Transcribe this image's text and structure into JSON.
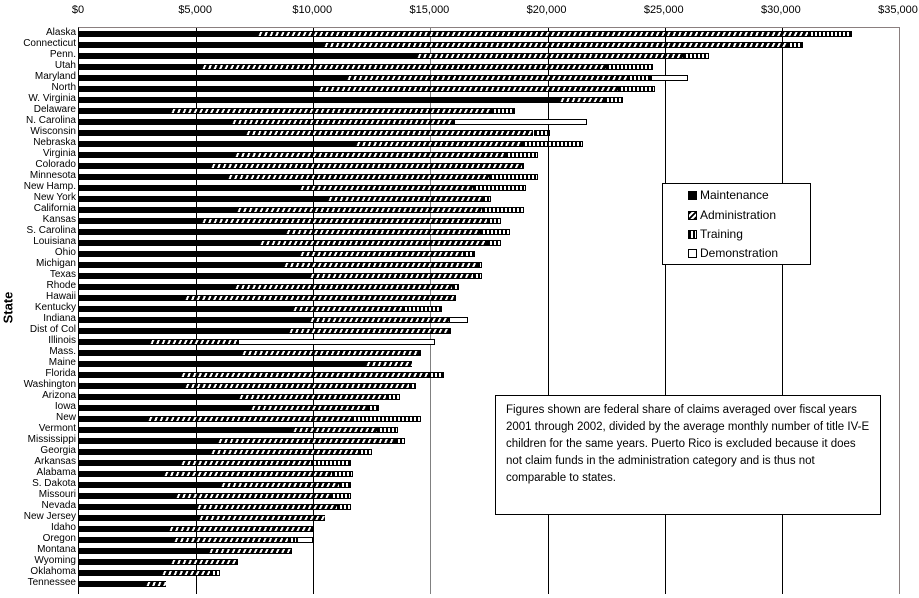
{
  "chart_data": {
    "type": "bar",
    "orientation": "horizontal",
    "stacked": true,
    "title": "",
    "xlabel": "",
    "ylabel": "State",
    "xlim": [
      0,
      35000
    ],
    "x_ticks": [
      "$0",
      "$5,000",
      "$10,000",
      "$15,000",
      "$20,000",
      "$25,000",
      "$30,000",
      "$35,000"
    ],
    "legend": [
      "Maintenance",
      "Administration",
      "Training",
      "Demonstration"
    ],
    "legend_position": "inside-right",
    "grid": "vertical",
    "note": "Figures shown are federal share of claims averaged over fiscal years 2001 through 2002, divided by the average monthly number of title IV-E children for the same years. Puerto Rico is excluded because it does not claim funds in the administration category and is thus not comparable to states.",
    "categories": [
      "Alaska",
      "Connecticut",
      "Penn.",
      "Utah",
      "Maryland",
      "North",
      "W. Virginia",
      "Delaware",
      "N. Carolina",
      "Wisconsin",
      "Nebraska",
      "Virginia",
      "Colorado",
      "Minnesota",
      "New Hamp.",
      "New York",
      "California",
      "Kansas",
      "S. Carolina",
      "Louisiana",
      "Ohio",
      "Michigan",
      "Texas",
      "Rhode",
      "Hawaii",
      "Kentucky",
      "Indiana",
      "Dist of Col",
      "Illinois",
      "Mass.",
      "Maine",
      "Florida",
      "Washington",
      "Arizona",
      "Iowa",
      "New",
      "Vermont",
      "Mississippi",
      "Georgia",
      "Arkansas",
      "Alabama",
      "S. Dakota",
      "Missouri",
      "Nevada",
      "New Jersey",
      "Idaho",
      "Oregon",
      "Montana",
      "Wyoming",
      "Oklahoma",
      "Tennessee"
    ],
    "series": [
      {
        "name": "Maintenance",
        "values": [
          7600,
          10400,
          14400,
          5200,
          11400,
          10200,
          20500,
          3900,
          6500,
          7100,
          11800,
          6600,
          5600,
          6300,
          9400,
          10600,
          6700,
          5200,
          8800,
          7700,
          9400,
          8700,
          9800,
          6600,
          4500,
          9100,
          9800,
          8900,
          3000,
          6900,
          12200,
          4300,
          4500,
          6800,
          7300,
          2900,
          9100,
          5900,
          5600,
          4300,
          3600,
          6000,
          4100,
          5000,
          5100,
          3800,
          4000,
          5500,
          3900,
          3500,
          2800
        ],
        "color": "#000000"
      },
      {
        "name": "Administration",
        "values": [
          23500,
          19800,
          11400,
          17300,
          12000,
          12800,
          1900,
          13700,
          9400,
          12300,
          7100,
          11600,
          13300,
          11200,
          7400,
          6600,
          10500,
          12200,
          8300,
          9700,
          7000,
          8300,
          7000,
          9300,
          11500,
          4700,
          6000,
          6900,
          3800,
          7600,
          2000,
          10600,
          9600,
          6300,
          5000,
          8700,
          3600,
          7600,
          6300,
          5600,
          7200,
          5100,
          6600,
          6000,
          5400,
          6100,
          4900,
          3600,
          2800,
          2100,
          900
        ],
        "color": "#000000"
      },
      {
        "name": "Training",
        "values": [
          1900,
          700,
          1100,
          2000,
          1000,
          1600,
          800,
          1000,
          100,
          700,
          2600,
          1400,
          100,
          2100,
          2300,
          400,
          1800,
          600,
          1300,
          600,
          500,
          200,
          400,
          300,
          100,
          1700,
          0,
          100,
          0,
          100,
          0,
          700,
          300,
          600,
          500,
          3000,
          900,
          400,
          600,
          1700,
          900,
          500,
          900,
          600,
          0,
          100,
          400,
          0,
          100,
          400,
          0
        ],
        "color": "#000000"
      },
      {
        "name": "Demonstration",
        "values": [
          0,
          0,
          0,
          0,
          1600,
          0,
          0,
          0,
          5700,
          0,
          0,
          0,
          0,
          0,
          0,
          0,
          0,
          0,
          0,
          0,
          0,
          0,
          0,
          0,
          0,
          0,
          800,
          0,
          8400,
          0,
          0,
          0,
          0,
          0,
          0,
          0,
          0,
          0,
          0,
          0,
          0,
          0,
          0,
          0,
          0,
          0,
          700,
          0,
          0,
          0,
          0
        ],
        "color": "#ffffff"
      }
    ],
    "totals": [
      33000,
      30900,
      26900,
      24500,
      26000,
      24600,
      23200,
      18600,
      21700,
      20100,
      21500,
      19600,
      19000,
      19600,
      19100,
      17600,
      19000,
      18000,
      18400,
      18000,
      16900,
      17200,
      17200,
      16200,
      16100,
      15500,
      16600,
      15900,
      15200,
      14600,
      14200,
      15600,
      14400,
      13700,
      12800,
      14600,
      13600,
      13900,
      12500,
      11600,
      11700,
      11600,
      11600,
      11600,
      10500,
      10000,
      10000,
      9100,
      6800,
      6000,
      3700
    ]
  },
  "legend": {
    "items": [
      {
        "label": "Maintenance",
        "swatch": "maint"
      },
      {
        "label": "Administration",
        "swatch": "admin"
      },
      {
        "label": "Training",
        "swatch": "train"
      },
      {
        "label": "Demonstration",
        "swatch": "demo"
      }
    ]
  },
  "axis": {
    "ylabel": "State"
  }
}
